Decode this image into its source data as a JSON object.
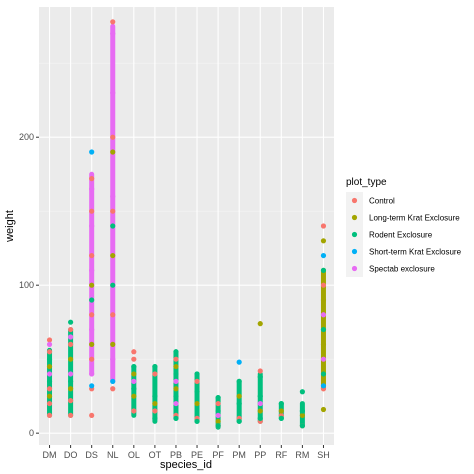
{
  "chart_data": {
    "type": "scatter",
    "title": "",
    "xlabel": "species_id",
    "ylabel": "weight",
    "ylim": [
      -8,
      288
    ],
    "y_ticks": [
      0,
      100,
      200
    ],
    "grid": true,
    "legend_position": "right",
    "legend_title": "plot_type",
    "categories": [
      "DM",
      "DO",
      "DS",
      "NL",
      "OL",
      "OT",
      "PB",
      "PE",
      "PF",
      "PM",
      "PP",
      "RF",
      "RM",
      "SH"
    ],
    "series": [
      {
        "name": "Control",
        "color": "#F8766D",
        "points": [
          [
            "DM",
            12
          ],
          [
            "DM",
            20
          ],
          [
            "DM",
            30
          ],
          [
            "DM",
            55
          ],
          [
            "DM",
            63
          ],
          [
            "DO",
            12
          ],
          [
            "DO",
            22
          ],
          [
            "DO",
            60
          ],
          [
            "DO",
            70
          ],
          [
            "DS",
            12
          ],
          [
            "DS",
            30
          ],
          [
            "DS",
            50
          ],
          [
            "DS",
            80
          ],
          [
            "DS",
            120
          ],
          [
            "DS",
            150
          ],
          [
            "DS",
            172
          ],
          [
            "NL",
            30
          ],
          [
            "NL",
            80
          ],
          [
            "NL",
            150
          ],
          [
            "NL",
            200
          ],
          [
            "NL",
            278
          ],
          [
            "OL",
            15
          ],
          [
            "OL",
            50
          ],
          [
            "OL",
            55
          ],
          [
            "OT",
            15
          ],
          [
            "OT",
            40
          ],
          [
            "PB",
            12
          ],
          [
            "PB",
            50
          ],
          [
            "PE",
            10
          ],
          [
            "PE",
            35
          ],
          [
            "PF",
            5
          ],
          [
            "PF",
            20
          ],
          [
            "PM",
            10
          ],
          [
            "PP",
            8
          ],
          [
            "PP",
            42
          ],
          [
            "RF",
            12
          ],
          [
            "RM",
            5
          ],
          [
            "SH",
            30
          ],
          [
            "SH",
            100
          ],
          [
            "SH",
            140
          ]
        ]
      },
      {
        "name": "Long-term Krat Exclosure",
        "color": "#A3A500",
        "points": [
          [
            "DM",
            25
          ],
          [
            "DM",
            45
          ],
          [
            "DO",
            30
          ],
          [
            "DO",
            50
          ],
          [
            "DS",
            60
          ],
          [
            "DS",
            100
          ],
          [
            "NL",
            60
          ],
          [
            "NL",
            120
          ],
          [
            "NL",
            190
          ],
          [
            "OL",
            25
          ],
          [
            "OL",
            40
          ],
          [
            "OT",
            20
          ],
          [
            "PB",
            30
          ],
          [
            "PB",
            45
          ],
          [
            "PE",
            20
          ],
          [
            "PF",
            8
          ],
          [
            "PM",
            25
          ],
          [
            "PP",
            15
          ],
          [
            "PP",
            74
          ],
          [
            "RF",
            15
          ],
          [
            "RM",
            12
          ],
          [
            "SH",
            16
          ],
          [
            "SH",
            60
          ],
          [
            "SH",
            90
          ],
          [
            "SH",
            130
          ]
        ]
      },
      {
        "name": "Rodent Exclosure",
        "color": "#00BF7D",
        "points": [
          [
            "DM",
            35
          ],
          [
            "DM",
            50
          ],
          [
            "DO",
            35
          ],
          [
            "DO",
            75
          ],
          [
            "DS",
            90
          ],
          [
            "NL",
            100
          ],
          [
            "NL",
            140
          ],
          [
            "OL",
            30
          ],
          [
            "OL",
            45
          ],
          [
            "OT",
            10
          ],
          [
            "OT",
            25
          ],
          [
            "OT",
            45
          ],
          [
            "PB",
            10
          ],
          [
            "PB",
            25
          ],
          [
            "PB",
            40
          ],
          [
            "PB",
            55
          ],
          [
            "PE",
            8
          ],
          [
            "PE",
            28
          ],
          [
            "PE",
            40
          ],
          [
            "PF",
            5
          ],
          [
            "PF",
            15
          ],
          [
            "PF",
            24
          ],
          [
            "PM",
            8
          ],
          [
            "PM",
            20
          ],
          [
            "PM",
            35
          ],
          [
            "PP",
            10
          ],
          [
            "PP",
            25
          ],
          [
            "PP",
            38
          ],
          [
            "RF",
            10
          ],
          [
            "RF",
            20
          ],
          [
            "RM",
            5
          ],
          [
            "RM",
            15
          ],
          [
            "RM",
            28
          ],
          [
            "SH",
            40
          ],
          [
            "SH",
            70
          ],
          [
            "SH",
            110
          ]
        ]
      },
      {
        "name": "Short-term Krat Exclosure",
        "color": "#00B0F6",
        "points": [
          [
            "DS",
            32
          ],
          [
            "DS",
            190
          ],
          [
            "NL",
            35
          ],
          [
            "PM",
            48
          ],
          [
            "SH",
            32
          ],
          [
            "SH",
            120
          ]
        ]
      },
      {
        "name": "Spectab exclosure",
        "color": "#E76BF3",
        "points": [
          [
            "DM",
            40
          ],
          [
            "DM",
            60
          ],
          [
            "DO",
            40
          ],
          [
            "DO",
            65
          ],
          [
            "DS",
            40
          ],
          [
            "DS",
            70
          ],
          [
            "DS",
            110
          ],
          [
            "DS",
            140
          ],
          [
            "DS",
            165
          ],
          [
            "NL",
            50
          ],
          [
            "NL",
            160
          ],
          [
            "NL",
            230
          ],
          [
            "NL",
            270
          ],
          [
            "OL",
            35
          ],
          [
            "PB",
            20
          ],
          [
            "PB",
            35
          ],
          [
            "PF",
            12
          ],
          [
            "PP",
            20
          ],
          [
            "SH",
            50
          ],
          [
            "SH",
            80
          ]
        ]
      }
    ],
    "dense_segments": [
      {
        "category": "DM",
        "from": 12,
        "to": 56,
        "color": "#00BF7D"
      },
      {
        "category": "DO",
        "from": 12,
        "to": 70,
        "color": "#00BF7D"
      },
      {
        "category": "DS",
        "from": 40,
        "to": 175,
        "color": "#E76BF3"
      },
      {
        "category": "NL",
        "from": 35,
        "to": 275,
        "color": "#E76BF3"
      },
      {
        "category": "OL",
        "from": 12,
        "to": 45,
        "color": "#00BF7D"
      },
      {
        "category": "OT",
        "from": 8,
        "to": 45,
        "color": "#00BF7D"
      },
      {
        "category": "PB",
        "from": 10,
        "to": 55,
        "color": "#00BF7D"
      },
      {
        "category": "PE",
        "from": 8,
        "to": 40,
        "color": "#00BF7D"
      },
      {
        "category": "PF",
        "from": 4,
        "to": 24,
        "color": "#00BF7D"
      },
      {
        "category": "PM",
        "from": 8,
        "to": 35,
        "color": "#00BF7D"
      },
      {
        "category": "PP",
        "from": 8,
        "to": 40,
        "color": "#00BF7D"
      },
      {
        "category": "RF",
        "from": 10,
        "to": 20,
        "color": "#00BF7D"
      },
      {
        "category": "RM",
        "from": 5,
        "to": 20,
        "color": "#00BF7D"
      },
      {
        "category": "SH",
        "from": 30,
        "to": 110,
        "color": "#A3A500"
      }
    ]
  }
}
